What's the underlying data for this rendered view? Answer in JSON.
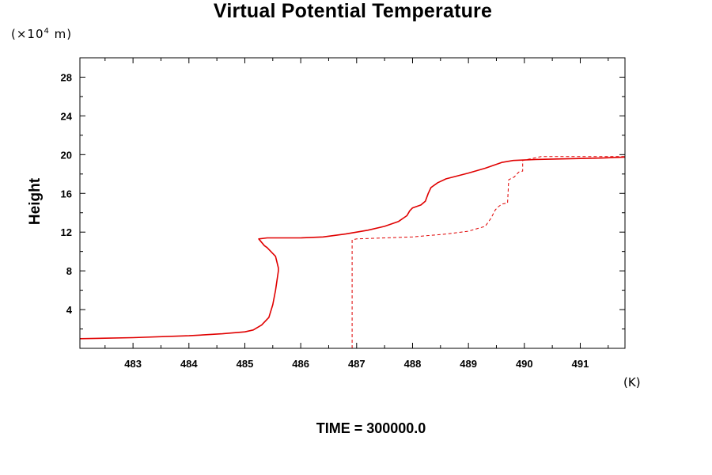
{
  "chart_data": {
    "type": "line",
    "title": "Virtual Potential Temperature",
    "ylabel": "Height",
    "yunit_prefix": "(×10",
    "yunit_exp": "4",
    "yunit_suffix": " m)",
    "xunit": "(K)",
    "footer": "TIME = 300000.0",
    "xlim": [
      482.05,
      491.8
    ],
    "ylim": [
      0,
      30
    ],
    "x_ticks": [
      483,
      484,
      485,
      486,
      487,
      488,
      489,
      490,
      491
    ],
    "x_tick_labels": [
      "483",
      "484",
      "485",
      "486",
      "487",
      "488",
      "489",
      "490",
      "491"
    ],
    "y_ticks": [
      4,
      8,
      12,
      16,
      20,
      24,
      28
    ],
    "y_tick_labels": [
      "4",
      "8",
      "12",
      "16",
      "20",
      "24",
      "28"
    ],
    "grid": false,
    "line_color": "#e00000",
    "series": [
      {
        "style": "solid",
        "x": [
          482.05,
          483.0,
          484.0,
          484.6,
          485.0,
          485.15,
          485.3,
          485.43,
          485.5,
          485.55,
          485.6,
          485.6,
          485.55,
          485.4,
          485.35,
          485.25,
          485.4,
          486.0,
          486.4,
          486.8,
          487.2,
          487.5,
          487.75,
          487.9,
          487.95,
          488.0,
          488.15,
          488.23,
          488.28,
          488.33,
          488.45,
          488.6,
          489.0,
          489.3,
          489.6,
          489.8,
          490.2,
          490.6,
          491.0,
          491.4,
          491.8
        ],
        "y": [
          1.0,
          1.1,
          1.3,
          1.5,
          1.7,
          1.9,
          2.4,
          3.2,
          4.5,
          6.0,
          8.0,
          8.3,
          9.5,
          10.4,
          10.6,
          11.3,
          11.4,
          11.4,
          11.5,
          11.8,
          12.2,
          12.6,
          13.1,
          13.7,
          14.2,
          14.5,
          14.8,
          15.2,
          16.0,
          16.6,
          17.1,
          17.5,
          18.1,
          18.6,
          19.2,
          19.4,
          19.5,
          19.55,
          19.6,
          19.65,
          19.75
        ]
      },
      {
        "style": "dashed",
        "x": [
          486.92,
          486.92,
          487.0,
          487.5,
          488.0,
          488.6,
          489.0,
          489.3,
          489.4,
          489.48,
          489.53,
          489.6,
          489.7,
          489.72,
          489.82,
          489.9,
          489.97,
          489.97,
          490.3,
          490.8,
          491.3,
          491.8
        ],
        "y": [
          0.0,
          11.2,
          11.3,
          11.4,
          11.5,
          11.8,
          12.1,
          12.6,
          13.4,
          14.3,
          14.6,
          14.9,
          15.0,
          17.4,
          17.7,
          18.2,
          18.3,
          19.4,
          19.8,
          19.8,
          19.8,
          19.8
        ]
      }
    ]
  }
}
